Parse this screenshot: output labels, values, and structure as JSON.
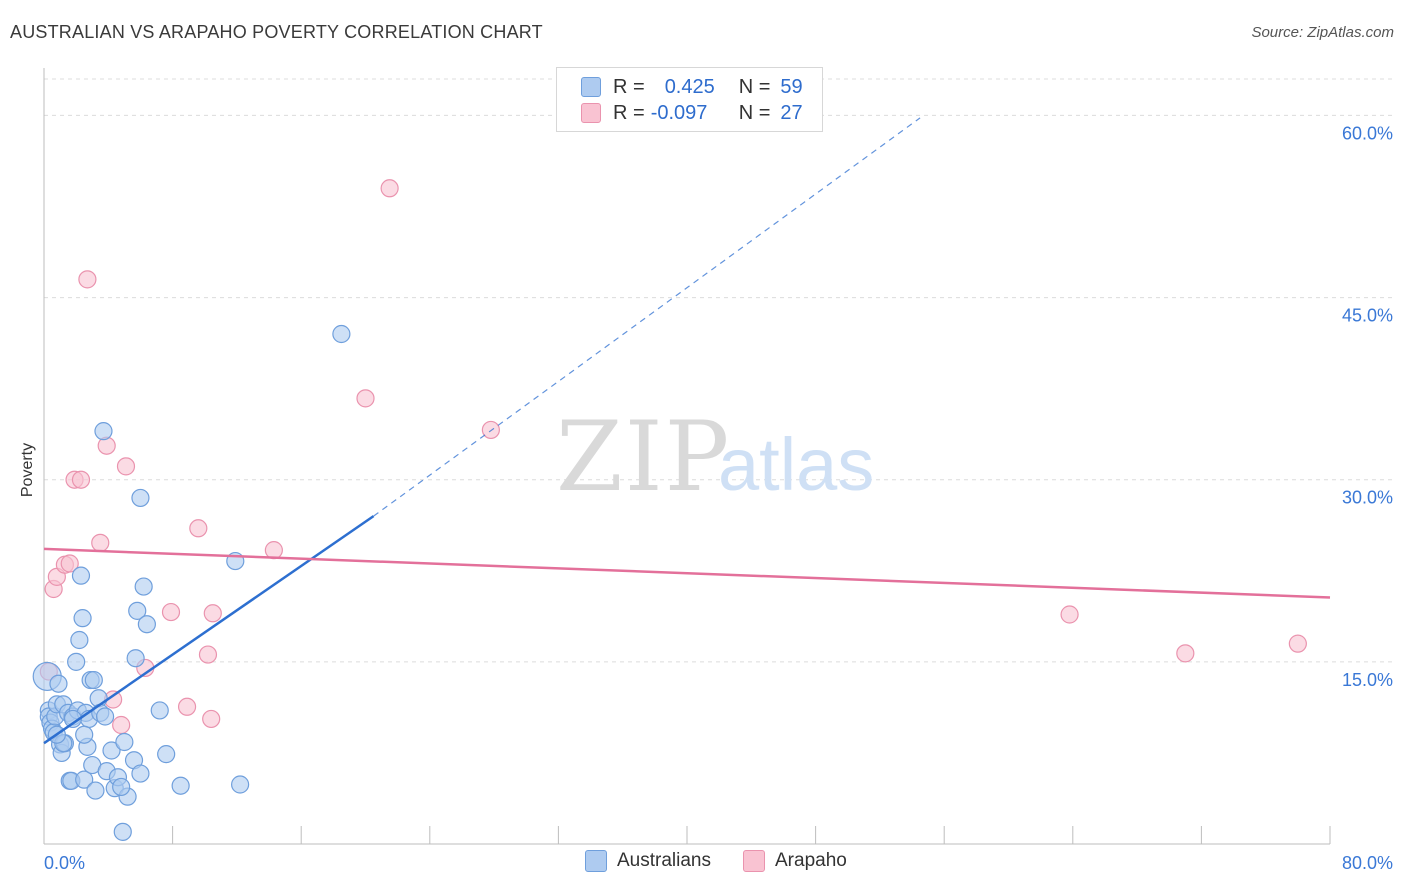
{
  "title": "AUSTRALIAN VS ARAPAHO POVERTY CORRELATION CHART",
  "source": "Source: ZipAtlas.com",
  "watermark": {
    "zip": "ZIP",
    "atlas": "atlas"
  },
  "legend_top": [
    {
      "r_label": "R =",
      "r_value": "0.425",
      "n_label": "N =",
      "n_value": "59"
    },
    {
      "r_label": "R =",
      "r_value": "-0.097",
      "n_label": "N =",
      "n_value": "27"
    }
  ],
  "legend_bottom": {
    "series1": "Australians",
    "series2": "Arapaho"
  },
  "colors": {
    "blue_fill": "#aecbf0",
    "blue_stroke": "#6f9fdc",
    "blue_line": "#2d6fd0",
    "pink_fill": "#f9c3d2",
    "pink_stroke": "#ea93ae",
    "pink_line": "#e3709a",
    "tick_label": "#3a78d6",
    "grid": "#dcdcdc"
  },
  "chart_data": {
    "type": "scatter",
    "title": "AUSTRALIAN VS ARAPAHO POVERTY CORRELATION CHART",
    "xlabel": "",
    "ylabel": "Poverty",
    "xlim": [
      0,
      80
    ],
    "ylim": [
      0,
      63
    ],
    "x_tick_labels": [
      "0.0%",
      "80.0%"
    ],
    "y_ticks": [
      15,
      30,
      45,
      60
    ],
    "y_tick_labels": [
      "15.0%",
      "30.0%",
      "45.0%",
      "60.0%"
    ],
    "x_minor_ticks": [
      0,
      8,
      16,
      24,
      32,
      40,
      48,
      56,
      64,
      72,
      80
    ],
    "grid": true,
    "legend_placement": "top-center",
    "series": [
      {
        "name": "Australians",
        "R": 0.425,
        "N": 59,
        "trend": {
          "x0": 0,
          "y0": 8.3,
          "x1": 20.5,
          "y1": 27.0,
          "dash_to_x": 54.5,
          "dash_to_y": 59.8
        },
        "points": [
          [
            0.2,
            13.8
          ],
          [
            0.3,
            11.0
          ],
          [
            0.3,
            10.5
          ],
          [
            0.4,
            10.0
          ],
          [
            0.5,
            9.5
          ],
          [
            0.6,
            9.2
          ],
          [
            0.7,
            10.5
          ],
          [
            0.8,
            11.5
          ],
          [
            0.9,
            13.2
          ],
          [
            1.0,
            8.2
          ],
          [
            1.1,
            7.5
          ],
          [
            1.2,
            11.5
          ],
          [
            1.3,
            8.3
          ],
          [
            1.5,
            10.8
          ],
          [
            1.6,
            5.2
          ],
          [
            1.7,
            5.2
          ],
          [
            1.8,
            10.5
          ],
          [
            2.0,
            15.0
          ],
          [
            2.1,
            11.0
          ],
          [
            2.2,
            16.8
          ],
          [
            2.3,
            22.1
          ],
          [
            2.4,
            18.6
          ],
          [
            2.5,
            5.3
          ],
          [
            2.6,
            10.8
          ],
          [
            2.7,
            8.0
          ],
          [
            2.8,
            10.3
          ],
          [
            2.9,
            13.5
          ],
          [
            3.0,
            6.5
          ],
          [
            3.1,
            13.5
          ],
          [
            3.2,
            4.4
          ],
          [
            3.4,
            12.0
          ],
          [
            3.5,
            10.8
          ],
          [
            3.7,
            34.0
          ],
          [
            3.9,
            6.0
          ],
          [
            4.2,
            7.7
          ],
          [
            4.4,
            4.6
          ],
          [
            4.6,
            5.5
          ],
          [
            5.0,
            8.4
          ],
          [
            5.2,
            3.9
          ],
          [
            5.6,
            6.9
          ],
          [
            5.7,
            15.3
          ],
          [
            5.8,
            19.2
          ],
          [
            6.0,
            28.5
          ],
          [
            6.2,
            21.2
          ],
          [
            6.4,
            18.1
          ],
          [
            7.6,
            7.4
          ],
          [
            8.5,
            4.8
          ],
          [
            11.9,
            23.3
          ],
          [
            12.2,
            4.9
          ],
          [
            18.5,
            42.0
          ],
          [
            1.8,
            10.3
          ],
          [
            2.5,
            9.0
          ],
          [
            3.8,
            10.5
          ],
          [
            4.8,
            4.7
          ],
          [
            6.0,
            5.8
          ],
          [
            7.2,
            11.0
          ],
          [
            1.2,
            8.3
          ],
          [
            0.8,
            9.0
          ],
          [
            4.9,
            1.0
          ]
        ]
      },
      {
        "name": "Arapaho",
        "R": -0.097,
        "N": 27,
        "trend": {
          "x0": 0,
          "y0": 24.3,
          "x1": 80,
          "y1": 20.3
        },
        "points": [
          [
            0.3,
            14.2
          ],
          [
            0.6,
            21.0
          ],
          [
            0.8,
            22.0
          ],
          [
            1.3,
            23.0
          ],
          [
            1.6,
            23.1
          ],
          [
            1.9,
            30.0
          ],
          [
            2.3,
            30.0
          ],
          [
            2.7,
            46.5
          ],
          [
            3.5,
            24.8
          ],
          [
            3.9,
            32.8
          ],
          [
            4.3,
            11.9
          ],
          [
            4.8,
            9.8
          ],
          [
            5.1,
            31.1
          ],
          [
            6.3,
            14.5
          ],
          [
            7.9,
            19.1
          ],
          [
            8.9,
            11.3
          ],
          [
            9.6,
            26.0
          ],
          [
            10.2,
            15.6
          ],
          [
            10.4,
            10.3
          ],
          [
            10.5,
            19.0
          ],
          [
            14.3,
            24.2
          ],
          [
            20.0,
            36.7
          ],
          [
            21.5,
            54.0
          ],
          [
            27.8,
            34.1
          ],
          [
            63.8,
            18.9
          ],
          [
            71.0,
            15.7
          ],
          [
            78.0,
            16.5
          ]
        ]
      }
    ]
  }
}
